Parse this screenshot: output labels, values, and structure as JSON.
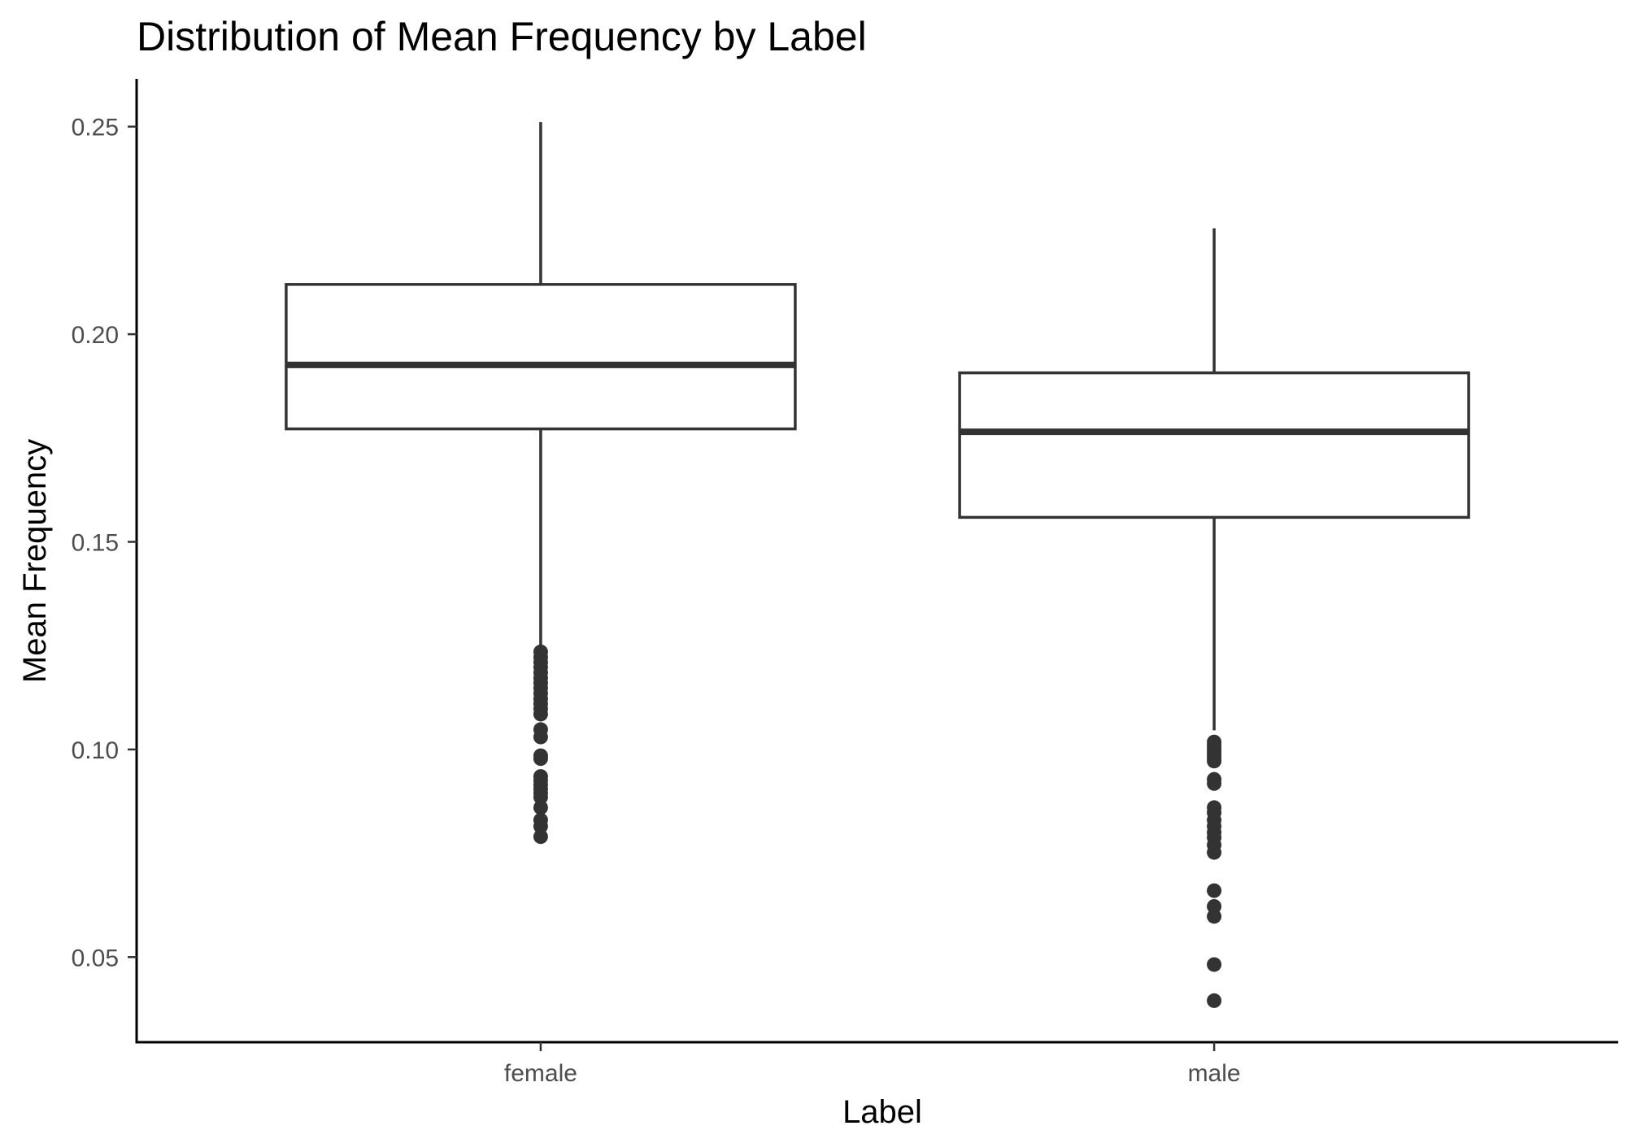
{
  "chart_data": {
    "type": "boxplot",
    "title": "Distribution of Mean Frequency by Label",
    "xlabel": "Label",
    "ylabel": "Mean Frequency",
    "ylim": [
      0.0295,
      0.2615
    ],
    "yticks": [
      0.05,
      0.1,
      0.15,
      0.2,
      0.25
    ],
    "ytick_labels": [
      "0.05",
      "0.10",
      "0.15",
      "0.20",
      "0.25"
    ],
    "grid": false,
    "legend": "none",
    "categories": [
      "female",
      "male"
    ],
    "boxes": [
      {
        "category": "female",
        "whisker_low": 0.1235,
        "q1": 0.1772,
        "median": 0.1926,
        "q3": 0.212,
        "whisker_high": 0.2511,
        "outliers": [
          0.1235,
          0.1222,
          0.121,
          0.1198,
          0.1185,
          0.1172,
          0.116,
          0.1148,
          0.1135,
          0.1122,
          0.111,
          0.1098,
          0.1085,
          0.1048,
          0.103,
          0.0985,
          0.0978,
          0.0935,
          0.0925,
          0.0915,
          0.0905,
          0.0895,
          0.0885,
          0.086,
          0.083,
          0.0815,
          0.079
        ]
      },
      {
        "category": "male",
        "whisker_low": 0.1046,
        "q1": 0.1559,
        "median": 0.1765,
        "q3": 0.1907,
        "whisker_high": 0.2255,
        "outliers": [
          0.1018,
          0.101,
          0.1002,
          0.0995,
          0.0988,
          0.098,
          0.0972,
          0.0928,
          0.0918,
          0.086,
          0.0848,
          0.083,
          0.0815,
          0.08,
          0.0788,
          0.077,
          0.0752,
          0.066,
          0.0622,
          0.0598,
          0.0482,
          0.0395
        ]
      }
    ]
  },
  "colors": {
    "box_stroke": "#333333",
    "box_fill": "#ffffff",
    "axis": "#000000",
    "tick_label": "#4d4d4d"
  }
}
